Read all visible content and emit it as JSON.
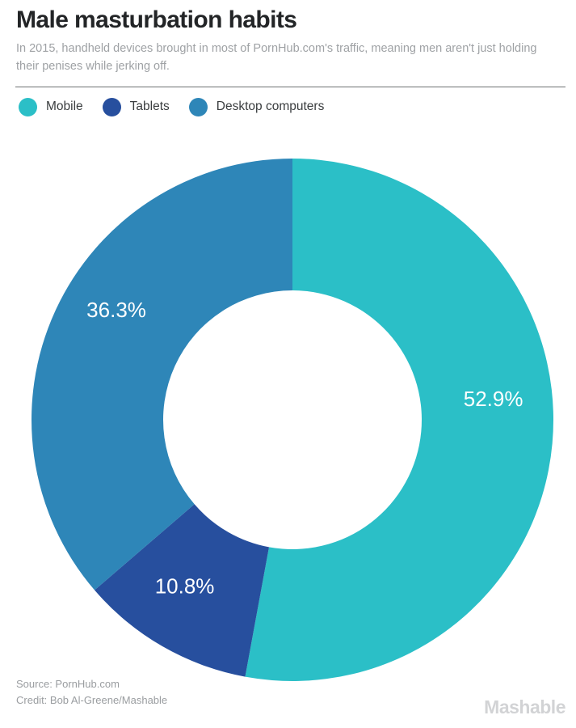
{
  "header": {
    "title": "Male masturbation habits",
    "subtitle": "In 2015, handheld devices brought in most of PornHub.com's traffic, meaning men aren't just holding their penises while jerking off."
  },
  "legend": {
    "items": [
      {
        "label": "Mobile",
        "color": "#2bbfc7"
      },
      {
        "label": "Tablets",
        "color": "#274f9e"
      },
      {
        "label": "Desktop computers",
        "color": "#2e86b8"
      }
    ]
  },
  "chart_data": {
    "type": "pie",
    "subtype": "donut",
    "title": "Male masturbation habits",
    "categories": [
      "Mobile",
      "Tablets",
      "Desktop computers"
    ],
    "values": [
      52.9,
      10.8,
      36.3
    ],
    "unit": "%",
    "slice_labels": [
      "52.9%",
      "10.8%",
      "36.3%"
    ],
    "colors": [
      "#2bbfc7",
      "#274f9e",
      "#2e86b8"
    ],
    "start_angle_deg": 0,
    "direction": "clockwise",
    "donut_hole_ratio": 0.495,
    "legend_position": "top-left",
    "label_color": "#ffffff",
    "label_angle_hints_deg": [
      84,
      213,
      302
    ],
    "label_radius_hints": [
      250,
      245,
      257
    ]
  },
  "footer": {
    "source": "Source: PornHub.com",
    "credit": "Credit: Bob Al-Greene/Mashable",
    "brand": "Mashable"
  }
}
